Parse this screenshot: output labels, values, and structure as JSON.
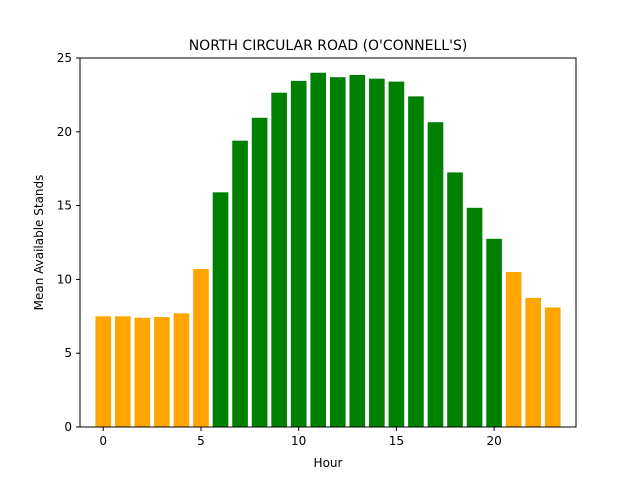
{
  "chart_data": {
    "type": "bar",
    "title": "NORTH CIRCULAR ROAD (O'CONNELL'S)",
    "xlabel": "Hour",
    "ylabel": "Mean Available Stands",
    "x": [
      0,
      1,
      2,
      3,
      4,
      5,
      6,
      7,
      8,
      9,
      10,
      11,
      12,
      13,
      14,
      15,
      16,
      17,
      18,
      19,
      20,
      21,
      22,
      23
    ],
    "values": [
      7.5,
      7.5,
      7.4,
      7.45,
      7.7,
      10.7,
      15.9,
      19.4,
      20.95,
      22.65,
      23.45,
      24.0,
      23.7,
      23.85,
      23.6,
      23.4,
      22.4,
      20.65,
      17.25,
      14.85,
      12.75,
      10.5,
      8.75,
      8.1
    ],
    "bar_colors": [
      "#ffa500",
      "#ffa500",
      "#ffa500",
      "#ffa500",
      "#ffa500",
      "#ffa500",
      "#008000",
      "#008000",
      "#008000",
      "#008000",
      "#008000",
      "#008000",
      "#008000",
      "#008000",
      "#008000",
      "#008000",
      "#008000",
      "#008000",
      "#008000",
      "#008000",
      "#008000",
      "#ffa500",
      "#ffa500",
      "#ffa500"
    ],
    "xlim": [
      -1.19,
      24.19
    ],
    "ylim": [
      0,
      25
    ],
    "xticks": [
      0,
      5,
      10,
      15,
      20
    ],
    "yticks": [
      0,
      5,
      10,
      15,
      20,
      25
    ],
    "grid": false,
    "legend": "none"
  }
}
